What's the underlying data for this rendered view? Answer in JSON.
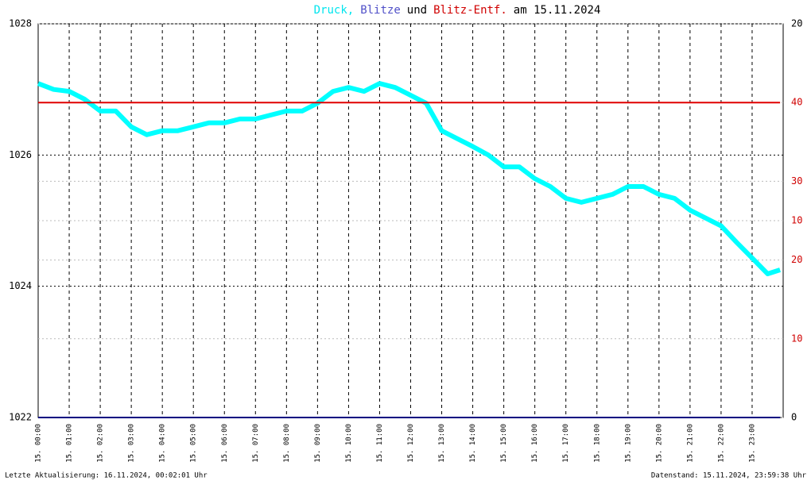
{
  "chart_data": {
    "type": "line",
    "title_parts": [
      {
        "text": "Druck,",
        "color": "#00e5ee"
      },
      {
        "text": "Blitze",
        "color": "#5050c8"
      },
      {
        "text": "und",
        "color": "#000000"
      },
      {
        "text": "Blitz-Entf.",
        "color": "#d00000"
      },
      {
        "text": "am 15.11.2024",
        "color": "#000000"
      }
    ],
    "footer_left": "Letzte Aktualisierung: 16.11.2024, 00:02:01 Uhr",
    "footer_right": "Datenstand: 15.11.2024, 23:59:38 Uhr",
    "x": [
      0,
      0.5,
      1,
      1.5,
      2,
      2.5,
      3,
      3.5,
      4,
      4.5,
      5,
      5.5,
      6,
      6.5,
      7,
      7.5,
      8,
      8.5,
      9,
      9.5,
      10,
      10.5,
      11,
      11.5,
      12,
      12.5,
      13,
      13.5,
      14,
      14.5,
      15,
      15.5,
      16,
      16.5,
      17,
      17.5,
      18,
      18.5,
      19,
      19.5,
      20,
      20.5,
      21,
      21.5,
      22,
      22.5,
      23,
      23.5,
      23.9
    ],
    "xlim": [
      0,
      24
    ],
    "xticks": [
      {
        "value": 0,
        "label": "15. 00:00"
      },
      {
        "value": 1,
        "label": "15. 01:00"
      },
      {
        "value": 2,
        "label": "15. 02:00"
      },
      {
        "value": 3,
        "label": "15. 03:00"
      },
      {
        "value": 4,
        "label": "15. 04:00"
      },
      {
        "value": 5,
        "label": "15. 05:00"
      },
      {
        "value": 6,
        "label": "15. 06:00"
      },
      {
        "value": 7,
        "label": "15. 07:00"
      },
      {
        "value": 8,
        "label": "15. 08:00"
      },
      {
        "value": 9,
        "label": "15. 09:00"
      },
      {
        "value": 10,
        "label": "15. 10:00"
      },
      {
        "value": 11,
        "label": "15. 11:00"
      },
      {
        "value": 12,
        "label": "15. 12:00"
      },
      {
        "value": 13,
        "label": "15. 13:00"
      },
      {
        "value": 14,
        "label": "15. 14:00"
      },
      {
        "value": 15,
        "label": "15. 15:00"
      },
      {
        "value": 16,
        "label": "15. 16:00"
      },
      {
        "value": 17,
        "label": "15. 17:00"
      },
      {
        "value": 18,
        "label": "15. 18:00"
      },
      {
        "value": 19,
        "label": "15. 19:00"
      },
      {
        "value": 20,
        "label": "15. 20:00"
      },
      {
        "value": 21,
        "label": "15. 21:00"
      },
      {
        "value": 22,
        "label": "15. 22:00"
      },
      {
        "value": 23,
        "label": "15. 23:00"
      }
    ],
    "ylim": [
      1022,
      1028
    ],
    "yticks": [
      1022,
      1024,
      1026,
      1028
    ],
    "y2lim": [
      0,
      20
    ],
    "y2ticks": [
      0,
      10,
      20
    ],
    "y2tick_colors": [
      "#000000",
      "#d00000",
      "#000000"
    ],
    "y3lim": [
      0,
      50
    ],
    "y3ticks": [
      10,
      20,
      30,
      40
    ],
    "y3tick_color": "#d00000",
    "grid": true,
    "series": [
      {
        "name": "Druck",
        "color": "#00ffff",
        "axis": "y",
        "values": [
          1027.09,
          1027.0,
          1026.97,
          1026.85,
          1026.67,
          1026.67,
          1026.43,
          1026.31,
          1026.37,
          1026.37,
          1026.43,
          1026.49,
          1026.49,
          1026.55,
          1026.55,
          1026.61,
          1026.67,
          1026.67,
          1026.79,
          1026.97,
          1027.03,
          1026.97,
          1027.09,
          1027.03,
          1026.91,
          1026.79,
          1026.37,
          1026.25,
          1026.13,
          1026.0,
          1025.82,
          1025.82,
          1025.64,
          1025.52,
          1025.34,
          1025.28,
          1025.34,
          1025.4,
          1025.52,
          1025.52,
          1025.4,
          1025.34,
          1025.16,
          1025.04,
          1024.92,
          1024.67,
          1024.43,
          1024.19,
          1024.25
        ]
      },
      {
        "name": "Blitze",
        "color": "#000080",
        "axis": "y2",
        "values": [
          0,
          0,
          0,
          0,
          0,
          0,
          0,
          0,
          0,
          0,
          0,
          0,
          0,
          0,
          0,
          0,
          0,
          0,
          0,
          0,
          0,
          0,
          0,
          0,
          0,
          0,
          0,
          0,
          0,
          0,
          0,
          0,
          0,
          0,
          0,
          0,
          0,
          0,
          0,
          0,
          0,
          0,
          0,
          0,
          0,
          0,
          0,
          0,
          0
        ]
      },
      {
        "name": "Blitz-Entf.",
        "color": "#e00000",
        "axis": "y3",
        "values": [
          40,
          40,
          40,
          40,
          40,
          40,
          40,
          40,
          40,
          40,
          40,
          40,
          40,
          40,
          40,
          40,
          40,
          40,
          40,
          40,
          40,
          40,
          40,
          40,
          40,
          40,
          40,
          40,
          40,
          40,
          40,
          40,
          40,
          40,
          40,
          40,
          40,
          40,
          40,
          40,
          40,
          40,
          40,
          40,
          40,
          40,
          40,
          40,
          40
        ]
      }
    ]
  }
}
